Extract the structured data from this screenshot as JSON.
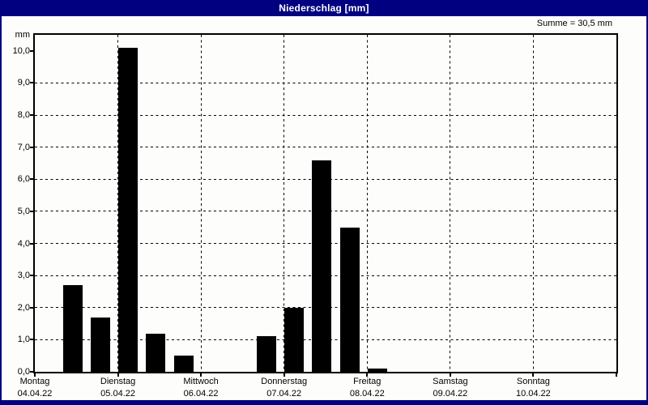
{
  "window": {
    "title": "Niederschlag [mm]"
  },
  "summary": {
    "text": "Summe = 30,5 mm"
  },
  "colors": {
    "titlebar": "#000080",
    "window_border": "#000080",
    "title_text": "#ffffff",
    "chart_foreground": "#000000",
    "chart_background": "#fdfdfb",
    "bar_color": "#000000"
  },
  "chart_data": {
    "type": "bar",
    "title": "Niederschlag [mm]",
    "ylabel": "mm",
    "ylim": [
      0,
      10.5
    ],
    "ytick_step": 1.0,
    "ytick_labels": [
      "0,0",
      "1,0",
      "2,0",
      "3,0",
      "4,0",
      "5,0",
      "6,0",
      "7,0",
      "8,0",
      "9,0",
      "10,0"
    ],
    "grid": true,
    "gridline_style": "dashed",
    "bars_per_day": 3,
    "bar_interval_hours": 8,
    "days": [
      {
        "name": "Montag",
        "date": "04.04.22",
        "values": [
          0,
          2.7,
          1.7
        ]
      },
      {
        "name": "Dienstag",
        "date": "05.04.22",
        "values": [
          10.1,
          1.2,
          0.5
        ]
      },
      {
        "name": "Mittwoch",
        "date": "06.04.22",
        "values": [
          0,
          0,
          1.1
        ]
      },
      {
        "name": "Donnerstag",
        "date": "07.04.22",
        "values": [
          2.0,
          6.6,
          4.5
        ]
      },
      {
        "name": "Freitag",
        "date": "08.04.22",
        "values": [
          0.1,
          0,
          0
        ]
      },
      {
        "name": "Samstag",
        "date": "09.04.22",
        "values": [
          0,
          0,
          0
        ]
      },
      {
        "name": "Sonntag",
        "date": "10.04.22",
        "values": [
          0,
          0,
          0
        ]
      }
    ],
    "sum_mm": 30.5,
    "legend": null
  }
}
